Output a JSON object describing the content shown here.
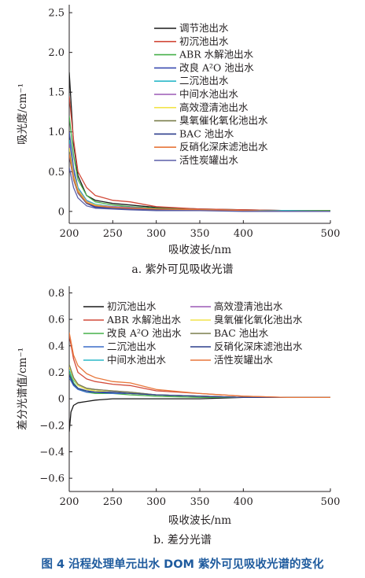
{
  "figure_caption": "图 4   沿程处理单元出水 DOM 紫外可见吸收光谱的变化",
  "chart_data": [
    {
      "type": "line",
      "caption": "a. 紫外可见吸收光谱",
      "xlabel": "吸收波长/nm",
      "ylabel": "吸光度/cm⁻¹",
      "xlim": [
        200,
        500
      ],
      "ylim": [
        -0.15,
        2.6
      ],
      "xticks": [
        200,
        250,
        300,
        350,
        400,
        500
      ],
      "yticks": [
        0,
        0.5,
        1.0,
        1.5,
        2.0,
        2.5
      ],
      "ytick_labels": [
        "0",
        "0.5",
        "1.0",
        "1.5",
        "2.0",
        "2.5"
      ],
      "legend_position": "top-right",
      "legend_columns": 1,
      "series": [
        {
          "name": "调节池出水",
          "color": "#1a1a1a",
          "x": [
            200,
            205,
            210,
            220,
            230,
            250,
            270,
            300,
            350,
            400,
            450,
            500
          ],
          "y": [
            1.75,
            0.85,
            0.45,
            0.2,
            0.14,
            0.1,
            0.08,
            0.05,
            0.03,
            0.02,
            0.01,
            0.01
          ]
        },
        {
          "name": "初沉池出水",
          "color": "#d24a3a",
          "x": [
            200,
            205,
            210,
            220,
            230,
            250,
            270,
            300,
            350,
            400,
            450,
            500
          ],
          "y": [
            1.45,
            0.9,
            0.5,
            0.3,
            0.2,
            0.14,
            0.12,
            0.06,
            0.03,
            0.02,
            0.01,
            0.01
          ]
        },
        {
          "name": "ABR 水解池出水",
          "color": "#47b04a",
          "x": [
            200,
            205,
            210,
            220,
            230,
            250,
            270,
            300,
            350,
            400,
            450,
            500
          ],
          "y": [
            1.2,
            0.7,
            0.4,
            0.2,
            0.12,
            0.08,
            0.06,
            0.04,
            0.02,
            0.01,
            0.01,
            0.01
          ]
        },
        {
          "name": "改良 A²O 池出水",
          "color": "#3a4bb0",
          "x": [
            200,
            205,
            210,
            220,
            230,
            250,
            270,
            300,
            350,
            400,
            450,
            500
          ],
          "y": [
            1.0,
            0.55,
            0.3,
            0.1,
            0.05,
            0.04,
            0.03,
            0.02,
            0.01,
            0.01,
            0.0,
            0.0
          ]
        },
        {
          "name": "二沉池出水",
          "color": "#2bb8c9",
          "x": [
            200,
            205,
            210,
            220,
            230,
            250,
            270,
            300,
            350,
            400,
            450,
            500
          ],
          "y": [
            0.9,
            0.5,
            0.3,
            0.14,
            0.09,
            0.06,
            0.05,
            0.03,
            0.02,
            0.01,
            0.01,
            0.0
          ]
        },
        {
          "name": "中间水池出水",
          "color": "#9b59b6",
          "x": [
            200,
            205,
            210,
            220,
            230,
            250,
            270,
            300,
            350,
            400,
            450,
            500
          ],
          "y": [
            0.85,
            0.48,
            0.28,
            0.13,
            0.08,
            0.06,
            0.05,
            0.03,
            0.02,
            0.01,
            0.0,
            0.0
          ]
        },
        {
          "name": "高效澄清池出水",
          "color": "#f2e44c",
          "x": [
            200,
            205,
            210,
            220,
            230,
            250,
            270,
            300,
            350,
            400,
            450,
            500
          ],
          "y": [
            0.8,
            0.45,
            0.27,
            0.12,
            0.08,
            0.05,
            0.04,
            0.03,
            0.02,
            0.01,
            0.0,
            0.0
          ]
        },
        {
          "name": "臭氧催化氧化池出水",
          "color": "#7a7f4c",
          "x": [
            200,
            205,
            210,
            220,
            230,
            250,
            270,
            300,
            350,
            400,
            450,
            500
          ],
          "y": [
            0.75,
            0.42,
            0.25,
            0.11,
            0.07,
            0.05,
            0.04,
            0.03,
            0.02,
            0.01,
            0.0,
            0.0
          ]
        },
        {
          "name": "BAC 池出水",
          "color": "#2c3e8c",
          "x": [
            200,
            205,
            210,
            220,
            230,
            250,
            270,
            300,
            350,
            400,
            450,
            500
          ],
          "y": [
            0.7,
            0.4,
            0.23,
            0.1,
            0.06,
            0.04,
            0.03,
            0.02,
            0.01,
            0.01,
            0.0,
            0.0
          ]
        },
        {
          "name": "反硝化深床滤池出水",
          "color": "#e8763a",
          "x": [
            200,
            205,
            210,
            220,
            230,
            250,
            270,
            300,
            350,
            400,
            450,
            500
          ],
          "y": [
            0.72,
            0.41,
            0.24,
            0.11,
            0.07,
            0.05,
            0.04,
            0.03,
            0.02,
            0.01,
            0.0,
            0.0
          ]
        },
        {
          "name": "活性炭罐出水",
          "color": "#5a5fa8",
          "x": [
            200,
            205,
            210,
            220,
            230,
            250,
            270,
            300,
            350,
            400,
            450,
            500
          ],
          "y": [
            0.55,
            0.3,
            0.17,
            0.07,
            0.04,
            0.03,
            0.02,
            0.01,
            0.01,
            0.0,
            0.0,
            0.0
          ]
        }
      ]
    },
    {
      "type": "line",
      "caption": "b. 差分光谱",
      "xlabel": "吸收波长/nm",
      "ylabel": "差分光谱值/cm⁻¹",
      "xlim": [
        200,
        500
      ],
      "ylim": [
        -0.7,
        0.85
      ],
      "xticks": [
        200,
        250,
        300,
        350,
        400,
        500
      ],
      "yticks": [
        -0.6,
        -0.4,
        -0.2,
        0,
        0.2,
        0.4,
        0.6,
        0.8
      ],
      "ytick_labels": [
        "−0.6",
        "−0.4",
        "−0.2",
        "0",
        "0.2",
        "0.4",
        "0.6",
        "0.8"
      ],
      "legend_position": "top-right",
      "legend_columns": 2,
      "series": [
        {
          "name": "初沉池出水",
          "color": "#1a1a1a",
          "x": [
            200,
            202,
            205,
            210,
            220,
            230,
            250,
            270,
            300,
            350,
            400,
            450,
            500
          ],
          "y": [
            -0.25,
            -0.1,
            -0.05,
            -0.03,
            -0.02,
            -0.01,
            0.0,
            0.0,
            0.0,
            0.0,
            0.01,
            0.01,
            0.01
          ]
        },
        {
          "name": "ABR 水解池出水",
          "color": "#d24a3a",
          "x": [
            200,
            205,
            210,
            220,
            230,
            250,
            270,
            300,
            350,
            400,
            450,
            500
          ],
          "y": [
            0.48,
            0.3,
            0.2,
            0.15,
            0.13,
            0.11,
            0.1,
            0.06,
            0.04,
            0.02,
            0.01,
            0.01
          ]
        },
        {
          "name": "改良 A²O 池出水",
          "color": "#47b04a",
          "x": [
            200,
            205,
            210,
            220,
            230,
            250,
            270,
            300,
            350,
            400,
            450,
            500
          ],
          "y": [
            0.2,
            0.12,
            0.08,
            0.05,
            0.04,
            0.04,
            0.03,
            0.02,
            0.01,
            0.01,
            0.01,
            0.01
          ]
        },
        {
          "name": "二沉池出水",
          "color": "#3a6bc9",
          "x": [
            200,
            205,
            210,
            220,
            230,
            250,
            270,
            300,
            350,
            400,
            450,
            500
          ],
          "y": [
            0.16,
            0.1,
            0.07,
            0.05,
            0.05,
            0.04,
            0.04,
            0.03,
            0.02,
            0.01,
            0.01,
            0.01
          ]
        },
        {
          "name": "中间水池出水",
          "color": "#2bb8c9",
          "x": [
            200,
            205,
            210,
            220,
            230,
            250,
            270,
            300,
            350,
            400,
            450,
            500
          ],
          "y": [
            0.22,
            0.14,
            0.1,
            0.07,
            0.06,
            0.05,
            0.04,
            0.03,
            0.02,
            0.01,
            0.01,
            0.01
          ]
        },
        {
          "name": "高效澄清池出水",
          "color": "#9b59b6",
          "x": [
            200,
            205,
            210,
            220,
            230,
            250,
            270,
            300,
            350,
            400,
            450,
            500
          ],
          "y": [
            0.25,
            0.16,
            0.11,
            0.08,
            0.07,
            0.06,
            0.05,
            0.03,
            0.02,
            0.01,
            0.01,
            0.01
          ]
        },
        {
          "name": "臭氧催化氧化池出水",
          "color": "#f2e44c",
          "x": [
            200,
            205,
            210,
            220,
            230,
            250,
            270,
            300,
            350,
            400,
            450,
            500
          ],
          "y": [
            0.24,
            0.15,
            0.1,
            0.07,
            0.06,
            0.05,
            0.04,
            0.03,
            0.02,
            0.01,
            0.01,
            0.01
          ]
        },
        {
          "name": "BAC 池出水",
          "color": "#7a7f4c",
          "x": [
            200,
            205,
            210,
            220,
            230,
            250,
            270,
            300,
            350,
            400,
            450,
            500
          ],
          "y": [
            0.26,
            0.16,
            0.11,
            0.08,
            0.07,
            0.06,
            0.05,
            0.03,
            0.02,
            0.01,
            0.01,
            0.01
          ]
        },
        {
          "name": "反硝化深床滤池出水",
          "color": "#2c3e8c",
          "x": [
            200,
            205,
            210,
            220,
            230,
            250,
            270,
            300,
            350,
            400,
            450,
            500
          ],
          "y": [
            0.18,
            0.11,
            0.08,
            0.06,
            0.05,
            0.05,
            0.04,
            0.03,
            0.02,
            0.01,
            0.01,
            0.01
          ]
        },
        {
          "name": "活性炭罐出水",
          "color": "#e8763a",
          "x": [
            200,
            205,
            210,
            220,
            230,
            250,
            270,
            300,
            350,
            400,
            450,
            500
          ],
          "y": [
            0.5,
            0.33,
            0.25,
            0.19,
            0.16,
            0.13,
            0.12,
            0.07,
            0.04,
            0.02,
            0.01,
            0.01
          ]
        }
      ]
    }
  ]
}
